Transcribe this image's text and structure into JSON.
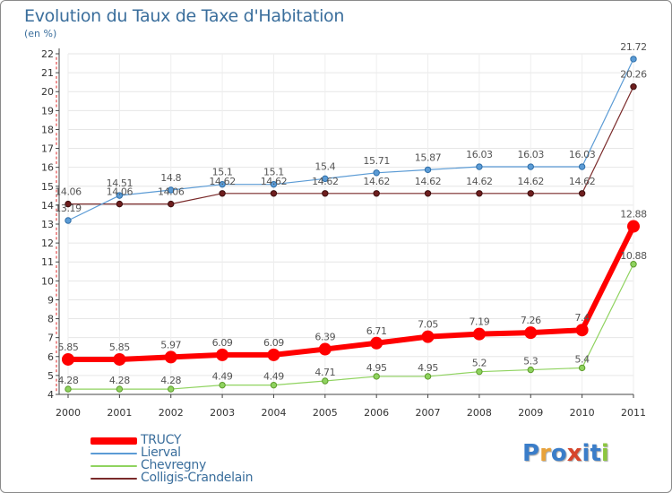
{
  "title": "Evolution du Taux de Taxe d'Habitation",
  "subtitle": "(en %)",
  "logo": {
    "letters": [
      "P",
      "r",
      "o",
      "x",
      "i",
      "t",
      "i"
    ],
    "colors": [
      "#3a7dc9",
      "#e8a23a",
      "#3a7dc9",
      "#d6452c",
      "#3a7dc9",
      "#3a7dc9",
      "#8cc63f"
    ]
  },
  "chart_data": {
    "type": "line",
    "title": "Evolution du Taux de Taxe d'Habitation",
    "ylabel": "(en %)",
    "xlabel": "",
    "x": [
      "2000",
      "2001",
      "2002",
      "2003",
      "2004",
      "2005",
      "2006",
      "2007",
      "2008",
      "2009",
      "2010",
      "2011"
    ],
    "ylim": [
      4,
      22
    ],
    "yticks": [
      4,
      5,
      6,
      7,
      8,
      9,
      10,
      11,
      12,
      13,
      14,
      15,
      16,
      17,
      18,
      19,
      20,
      21,
      22
    ],
    "grid": "horizontal",
    "legend_position": "bottom-left",
    "series": [
      {
        "name": "TRUCY",
        "color": "#ff0000",
        "values": [
          5.85,
          5.85,
          5.97,
          6.09,
          6.09,
          6.39,
          6.71,
          7.05,
          7.19,
          7.26,
          7.4,
          12.88
        ],
        "labels": [
          "5.85",
          "5.85",
          "5.97",
          "6.09",
          "6.09",
          "6.39",
          "6.71",
          "7.05",
          "7.19",
          "7.26",
          "7.4",
          "12.88"
        ]
      },
      {
        "name": "Lierval",
        "color": "#5b9bd5",
        "values": [
          13.19,
          14.51,
          14.8,
          15.1,
          15.1,
          15.4,
          15.71,
          15.87,
          16.03,
          16.03,
          16.03,
          21.72
        ],
        "labels": [
          "13.19",
          "14.51",
          "14.8",
          "15.1",
          "15.1",
          "15.4",
          "15.71",
          "15.87",
          "16.03",
          "16.03",
          "16.03",
          "21.72"
        ]
      },
      {
        "name": "Chevregny",
        "color": "#8fd35f",
        "values": [
          4.28,
          4.28,
          4.28,
          4.49,
          4.49,
          4.71,
          4.95,
          4.95,
          5.2,
          5.3,
          5.4,
          10.88
        ],
        "labels": [
          "4.28",
          "4.28",
          "4.28",
          "4.49",
          "4.49",
          "4.71",
          "4.95",
          "4.95",
          "5.2",
          "5.3",
          "5.4",
          "10.88"
        ]
      },
      {
        "name": "Colligis-Crandelain",
        "color": "#7a2a2a",
        "values": [
          14.06,
          14.06,
          14.06,
          14.62,
          14.62,
          14.62,
          14.62,
          14.62,
          14.62,
          14.62,
          14.62,
          20.26
        ],
        "labels": [
          "14.06",
          "14.06",
          "14.06",
          "14.62",
          "14.62",
          "14.62",
          "14.62",
          "14.62",
          "14.62",
          "14.62",
          "14.62",
          "20.26"
        ]
      }
    ]
  }
}
